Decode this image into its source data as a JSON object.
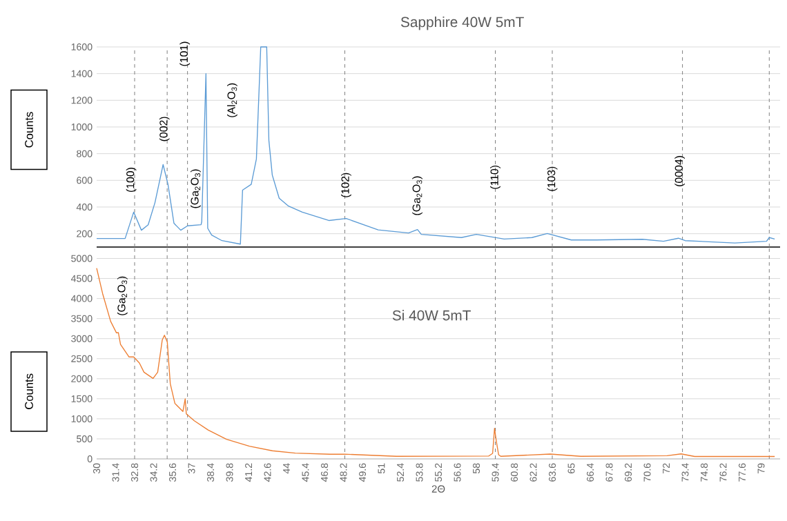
{
  "chart_data": [
    {
      "type": "line",
      "title": "Sapphire 40W 5mT",
      "ylabel": "Counts",
      "xlim": [
        30,
        80.4
      ],
      "ylim": [
        100,
        1600
      ],
      "yticks": [
        200,
        400,
        600,
        800,
        1000,
        1200,
        1400,
        1600
      ],
      "grid": "y",
      "tick_labels": "y",
      "series": [
        {
          "color": "#5b9bd5",
          "x": [
            30.0,
            32.1,
            32.73,
            33.3,
            33.8,
            34.3,
            34.9,
            35.26,
            35.7,
            36.2,
            36.7,
            37.7,
            37.75,
            38.06,
            38.19,
            38.48,
            39.24,
            40.6,
            40.76,
            41.4,
            41.78,
            42.1,
            42.54,
            42.7,
            42.95,
            43.46,
            44.15,
            45.16,
            47.15,
            48.4,
            50.76,
            53.0,
            53.66,
            53.94,
            56.9,
            58.0,
            60.05,
            62.1,
            63.23,
            65.0,
            66.85,
            70.25,
            71.8,
            72.9,
            73.4,
            77.06,
            79.4,
            79.6,
            80.0
          ],
          "values": [
            164,
            164,
            362,
            226,
            267,
            433,
            718,
            570,
            278,
            226,
            259,
            267,
            290,
            1400,
            241,
            190,
            148,
            122,
            527,
            570,
            760,
            1600,
            1600,
            900,
            640,
            466,
            407,
            362,
            299,
            314,
            229,
            205,
            231,
            195,
            171,
            195,
            160,
            171,
            201,
            153,
            153,
            158,
            143,
            166,
            148,
            130,
            143,
            171,
            160
          ]
        }
      ],
      "ref_lines": [
        {
          "axis": "x",
          "value": 32.8,
          "line_style": "dashed",
          "color": "#7f7f7f"
        },
        {
          "axis": "x",
          "value": 35.2,
          "line_style": "dashed",
          "color": "#7f7f7f"
        },
        {
          "axis": "x",
          "value": 36.7,
          "line_style": "dashed",
          "color": "#7f7f7f"
        },
        {
          "axis": "x",
          "value": 48.3,
          "line_style": "dashed",
          "color": "#7f7f7f"
        },
        {
          "axis": "x",
          "value": 59.4,
          "line_style": "dashed",
          "color": "#7f7f7f"
        },
        {
          "axis": "x",
          "value": 63.6,
          "line_style": "dashed",
          "color": "#7f7f7f"
        },
        {
          "axis": "x",
          "value": 73.2,
          "line_style": "dashed",
          "color": "#7f7f7f"
        },
        {
          "axis": "x",
          "value": 79.6,
          "line_style": "dashed",
          "color": "#7f7f7f"
        }
      ],
      "annotations": [
        {
          "text": "(100)",
          "x": 32.55,
          "y": 604
        },
        {
          "text": "(002)",
          "x": 35.0,
          "y": 985
        },
        {
          "text": "(101)",
          "x": 36.5,
          "y": 1548
        },
        "(Ga$_{2}$O$_{3}$)",
        "(Al$_{2}$O$_{3}$)",
        {
          "text": "(102)",
          "x": 48.4,
          "y": 564
        },
        "(Ga$_{2}$O$_{3}$)",
        {
          "text": "(110)",
          "x": 59.4,
          "y": 623
        },
        {
          "text": "(103)",
          "x": 63.6,
          "y": 611
        },
        {
          "text": "(0004)",
          "x": 73.0,
          "y": 669
        }
      ]
    },
    {
      "type": "line",
      "title": "Si 40W 5mT",
      "xlabel": "2Θ",
      "ylabel": "Counts",
      "xlim": [
        30,
        80.4
      ],
      "ylim": [
        0,
        5250
      ],
      "yticks": [
        0,
        500,
        1000,
        1500,
        2000,
        2500,
        3000,
        3500,
        4000,
        4500,
        5000
      ],
      "grid": "y",
      "xticks": [
        30,
        31.4,
        32.8,
        34.2,
        35.6,
        37,
        38.4,
        39.8,
        41.2,
        42.6,
        44,
        45.4,
        46.8,
        48.2,
        49.6,
        51,
        52.4,
        53.8,
        55.2,
        56.6,
        58,
        59.4,
        60.8,
        62.2,
        63.6,
        65,
        66.4,
        67.8,
        69.2,
        70.6,
        72,
        73.4,
        74.8,
        76.2,
        77.6,
        79
      ],
      "series": [
        {
          "color": "#ed7d31",
          "x": [
            30.0,
            30.44,
            31.03,
            31.46,
            31.6,
            31.76,
            32.39,
            32.73,
            33.15,
            33.49,
            34.16,
            34.5,
            34.84,
            35.0,
            35.21,
            35.43,
            35.77,
            36.36,
            36.53,
            36.61,
            37.2,
            38.22,
            39.58,
            41.27,
            42.96,
            44.65,
            47.2,
            48.27,
            52.1,
            58.9,
            59.2,
            59.34,
            59.47,
            59.64,
            59.8,
            63.45,
            65.7,
            72.07,
            73.1,
            74.1,
            80.0
          ],
          "values": [
            4757,
            4123,
            3431,
            3143,
            3150,
            2855,
            2543,
            2543,
            2393,
            2163,
            2007,
            2163,
            2970,
            3085,
            2912,
            1874,
            1384,
            1182,
            1500,
            1125,
            952,
            721,
            490,
            317,
            202,
            144,
            116,
            118,
            64,
            70,
            138,
            761,
            450,
            104,
            64,
            121,
            64,
            80,
            125,
            60,
            60
          ]
        }
      ],
      "ref_lines": [
        {
          "axis": "x",
          "value": 32.8,
          "line_style": "dashed",
          "color": "#7f7f7f"
        },
        {
          "axis": "x",
          "value": 35.2,
          "line_style": "dashed",
          "color": "#7f7f7f"
        },
        {
          "axis": "x",
          "value": 36.7,
          "line_style": "dashed",
          "color": "#7f7f7f"
        },
        {
          "axis": "x",
          "value": 48.3,
          "line_style": "dashed",
          "color": "#7f7f7f"
        },
        {
          "axis": "x",
          "value": 59.4,
          "line_style": "dashed",
          "color": "#7f7f7f"
        },
        {
          "axis": "x",
          "value": 63.6,
          "line_style": "dashed",
          "color": "#7f7f7f"
        },
        {
          "axis": "x",
          "value": 73.2,
          "line_style": "dashed",
          "color": "#7f7f7f"
        },
        {
          "axis": "x",
          "value": 79.6,
          "line_style": "dashed",
          "color": "#7f7f7f"
        }
      ],
      "annotations": [
        "(Ga$_{2}$O$_{3}$)"
      ]
    }
  ]
}
